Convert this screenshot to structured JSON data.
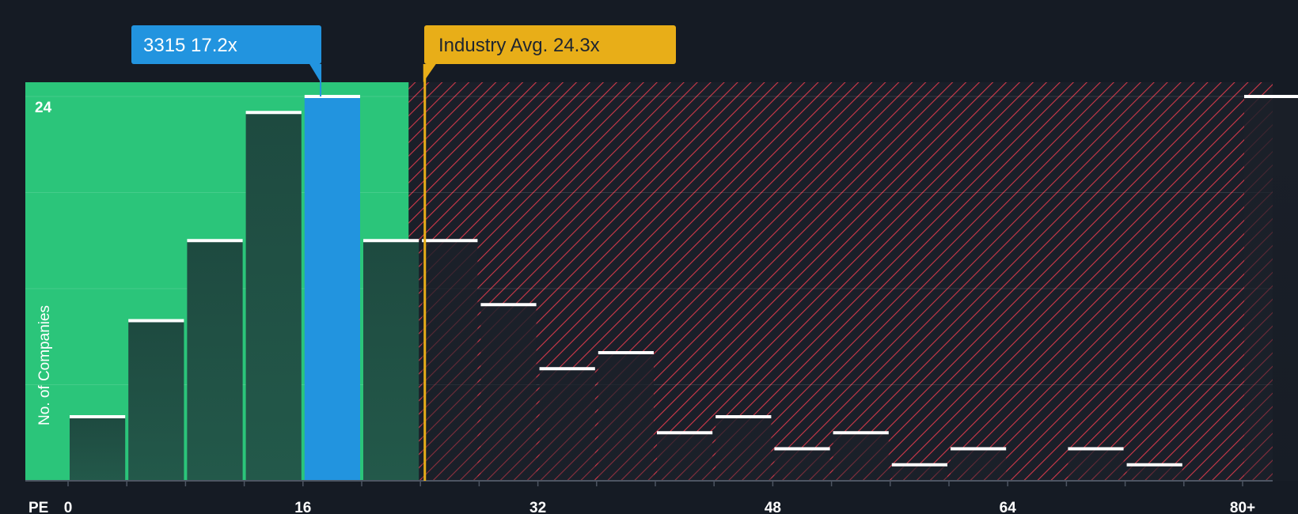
{
  "chart_data": {
    "type": "bar",
    "title": "",
    "xlabel": "PE",
    "ylabel": "No. of Companies",
    "xlim": [
      -4,
      82
    ],
    "ylim": [
      0,
      24
    ],
    "y_tick_labels": [
      {
        "value": 24,
        "label": "24"
      }
    ],
    "x_ticks": [
      {
        "value": 0,
        "label": "0"
      },
      {
        "value": 16,
        "label": "16"
      },
      {
        "value": 32,
        "label": "32"
      },
      {
        "value": 48,
        "label": "48"
      },
      {
        "value": 64,
        "label": "64"
      },
      {
        "value": 80,
        "label": "80+"
      }
    ],
    "bin_width": 4,
    "bins": [
      {
        "start": 0,
        "count": 4
      },
      {
        "start": 4,
        "count": 10
      },
      {
        "start": 8,
        "count": 15
      },
      {
        "start": 12,
        "count": 23
      },
      {
        "start": 16,
        "count": 24,
        "highlight": true
      },
      {
        "start": 20,
        "count": 15
      },
      {
        "start": 24,
        "count": 15
      },
      {
        "start": 28,
        "count": 11
      },
      {
        "start": 32,
        "count": 7
      },
      {
        "start": 36,
        "count": 8
      },
      {
        "start": 40,
        "count": 3
      },
      {
        "start": 44,
        "count": 4
      },
      {
        "start": 48,
        "count": 2
      },
      {
        "start": 52,
        "count": 3
      },
      {
        "start": 56,
        "count": 1
      },
      {
        "start": 60,
        "count": 2
      },
      {
        "start": 64,
        "count": 0
      },
      {
        "start": 68,
        "count": 2
      },
      {
        "start": 72,
        "count": 1
      },
      {
        "start": 76,
        "count": 0
      },
      {
        "start": 80,
        "count": 24
      }
    ],
    "company": {
      "ticker": "3315",
      "pe": 17.2,
      "label": "3315 17.2x"
    },
    "industry_avg": {
      "pe": 24.3,
      "label": "Industry Avg. 24.3x"
    },
    "fair_zone_end": 23.2
  },
  "colors": {
    "background": "#151b24",
    "fair_zone": "#2bc57a",
    "bar_dark": "#1e4a40",
    "highlight_bar": "#2294df",
    "over_zone_hatch": "#d0394a",
    "industry_line": "#e8ae18",
    "company_label_bg": "#2294df",
    "industry_label_bg": "#e8ae18",
    "text": "#ffffff",
    "axis": "#4d5562"
  }
}
